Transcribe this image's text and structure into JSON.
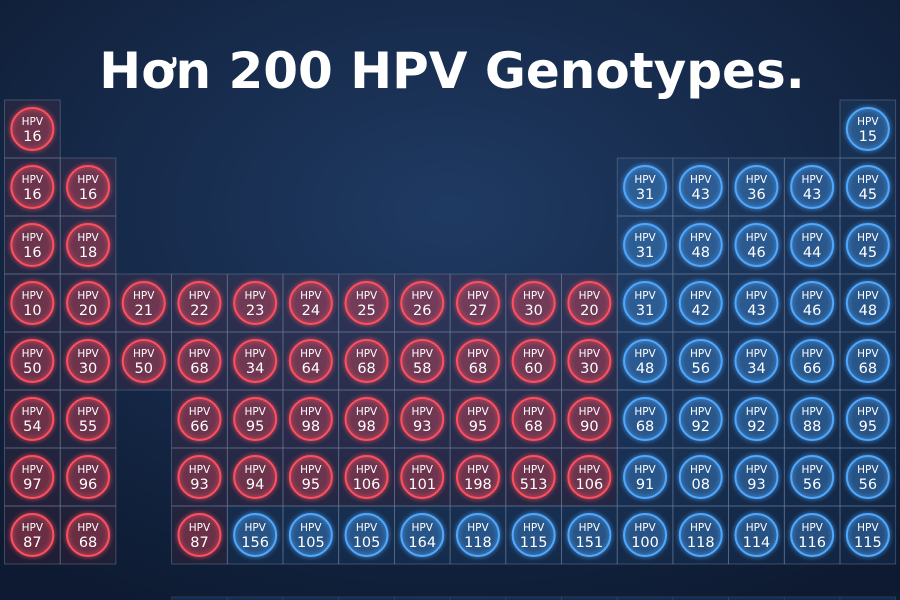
{
  "header": {
    "title": "Hơn 200 HPV Genotypes."
  },
  "grid": {
    "prefix": "HPV",
    "rows": [
      [
        {
          "label": "16",
          "color": "#ff4f5f"
        },
        null,
        null,
        null,
        null,
        null,
        null,
        null,
        null,
        null,
        null,
        null,
        null,
        null,
        null,
        {
          "label": "15",
          "color": "#4fa8ff"
        }
      ],
      [
        {
          "label": "16",
          "color": "#ff4f5f"
        },
        {
          "label": "16",
          "color": "#ff4f5f"
        },
        null,
        null,
        null,
        null,
        null,
        null,
        null,
        null,
        null,
        {
          "label": "31",
          "color": "#4fa8ff"
        },
        {
          "label": "43",
          "color": "#4fa8ff"
        },
        {
          "label": "36",
          "color": "#4fa8ff"
        },
        {
          "label": "43",
          "color": "#4fa8ff"
        },
        {
          "label": "45",
          "color": "#4fa8ff"
        }
      ],
      [
        {
          "label": "16",
          "color": "#ff4f5f"
        },
        {
          "label": "18",
          "color": "#ff4f5f"
        },
        null,
        null,
        null,
        null,
        null,
        null,
        null,
        null,
        null,
        {
          "label": "31",
          "color": "#4fa8ff"
        },
        {
          "label": "48",
          "color": "#4fa8ff"
        },
        {
          "label": "46",
          "color": "#4fa8ff"
        },
        {
          "label": "44",
          "color": "#4fa8ff"
        },
        {
          "label": "45",
          "color": "#4fa8ff"
        }
      ],
      [
        {
          "label": "10",
          "color": "#ff4f5f"
        },
        {
          "label": "20",
          "color": "#ff4f5f"
        },
        {
          "label": "21",
          "color": "#ff4f5f"
        },
        {
          "label": "22",
          "color": "#ff4f5f"
        },
        {
          "label": "23",
          "color": "#ff4f5f"
        },
        {
          "label": "24",
          "color": "#ff4f5f"
        },
        {
          "label": "25",
          "color": "#ff4f5f"
        },
        {
          "label": "26",
          "color": "#ff4f5f"
        },
        {
          "label": "27",
          "color": "#ff4f5f"
        },
        {
          "label": "30",
          "color": "#ff4f5f"
        },
        {
          "label": "20",
          "color": "#ff4f5f"
        },
        {
          "label": "31",
          "color": "#4fa8ff"
        },
        {
          "label": "42",
          "color": "#4fa8ff"
        },
        {
          "label": "43",
          "color": "#4fa8ff"
        },
        {
          "label": "46",
          "color": "#4fa8ff"
        },
        {
          "label": "48",
          "color": "#4fa8ff"
        }
      ],
      [
        {
          "label": "50",
          "color": "#ff4f5f"
        },
        {
          "label": "30",
          "color": "#ff4f5f"
        },
        {
          "label": "50",
          "color": "#ff4f5f"
        },
        {
          "label": "68",
          "color": "#ff4f5f"
        },
        {
          "label": "34",
          "color": "#ff4f5f"
        },
        {
          "label": "64",
          "color": "#ff4f5f"
        },
        {
          "label": "68",
          "color": "#ff4f5f"
        },
        {
          "label": "58",
          "color": "#ff4f5f"
        },
        {
          "label": "68",
          "color": "#ff4f5f"
        },
        {
          "label": "60",
          "color": "#ff4f5f"
        },
        {
          "label": "30",
          "color": "#ff4f5f"
        },
        {
          "label": "48",
          "color": "#4fa8ff"
        },
        {
          "label": "56",
          "color": "#4fa8ff"
        },
        {
          "label": "34",
          "color": "#4fa8ff"
        },
        {
          "label": "66",
          "color": "#4fa8ff"
        },
        {
          "label": "68",
          "color": "#4fa8ff"
        }
      ],
      [
        {
          "label": "54",
          "color": "#ff4f5f"
        },
        {
          "label": "55",
          "color": "#ff4f5f"
        },
        null,
        {
          "label": "66",
          "color": "#ff4f5f"
        },
        {
          "label": "95",
          "color": "#ff4f5f"
        },
        {
          "label": "98",
          "color": "#ff4f5f"
        },
        {
          "label": "98",
          "color": "#ff4f5f"
        },
        {
          "label": "93",
          "color": "#ff4f5f"
        },
        {
          "label": "95",
          "color": "#ff4f5f"
        },
        {
          "label": "68",
          "color": "#ff4f5f"
        },
        {
          "label": "90",
          "color": "#ff4f5f"
        },
        {
          "label": "68",
          "color": "#4fa8ff"
        },
        {
          "label": "92",
          "color": "#4fa8ff"
        },
        {
          "label": "92",
          "color": "#4fa8ff"
        },
        {
          "label": "88",
          "color": "#4fa8ff"
        },
        {
          "label": "95",
          "color": "#4fa8ff"
        }
      ],
      [
        {
          "label": "97",
          "color": "#ff4f5f"
        },
        {
          "label": "96",
          "color": "#ff4f5f"
        },
        null,
        {
          "label": "93",
          "color": "#ff4f5f"
        },
        {
          "label": "94",
          "color": "#ff4f5f"
        },
        {
          "label": "95",
          "color": "#ff4f5f"
        },
        {
          "label": "106",
          "color": "#ff4f5f"
        },
        {
          "label": "101",
          "color": "#ff4f5f"
        },
        {
          "label": "198",
          "color": "#ff4f5f"
        },
        {
          "label": "513",
          "color": "#ff4f5f"
        },
        {
          "label": "106",
          "color": "#ff4f5f"
        },
        {
          "label": "91",
          "color": "#4fa8ff"
        },
        {
          "label": "08",
          "color": "#4fa8ff"
        },
        {
          "label": "93",
          "color": "#4fa8ff"
        },
        {
          "label": "56",
          "color": "#4fa8ff"
        },
        {
          "label": "56",
          "color": "#4fa8ff"
        }
      ],
      [
        {
          "label": "87",
          "color": "#ff4f5f"
        },
        {
          "label": "68",
          "color": "#ff4f5f"
        },
        null,
        {
          "label": "87",
          "color": "#ff4f5f"
        },
        {
          "label": "156",
          "color": "#4fa8ff"
        },
        {
          "label": "105",
          "color": "#4fa8ff"
        },
        {
          "label": "105",
          "color": "#4fa8ff"
        },
        {
          "label": "164",
          "color": "#4fa8ff"
        },
        {
          "label": "118",
          "color": "#4fa8ff"
        },
        {
          "label": "115",
          "color": "#4fa8ff"
        },
        {
          "label": "151",
          "color": "#4fa8ff"
        },
        {
          "label": "100",
          "color": "#4fa8ff"
        },
        {
          "label": "118",
          "color": "#4fa8ff"
        },
        {
          "label": "114",
          "color": "#4fa8ff"
        },
        {
          "label": "116",
          "color": "#4fa8ff"
        },
        {
          "label": "115",
          "color": "#4fa8ff"
        }
      ]
    ]
  }
}
